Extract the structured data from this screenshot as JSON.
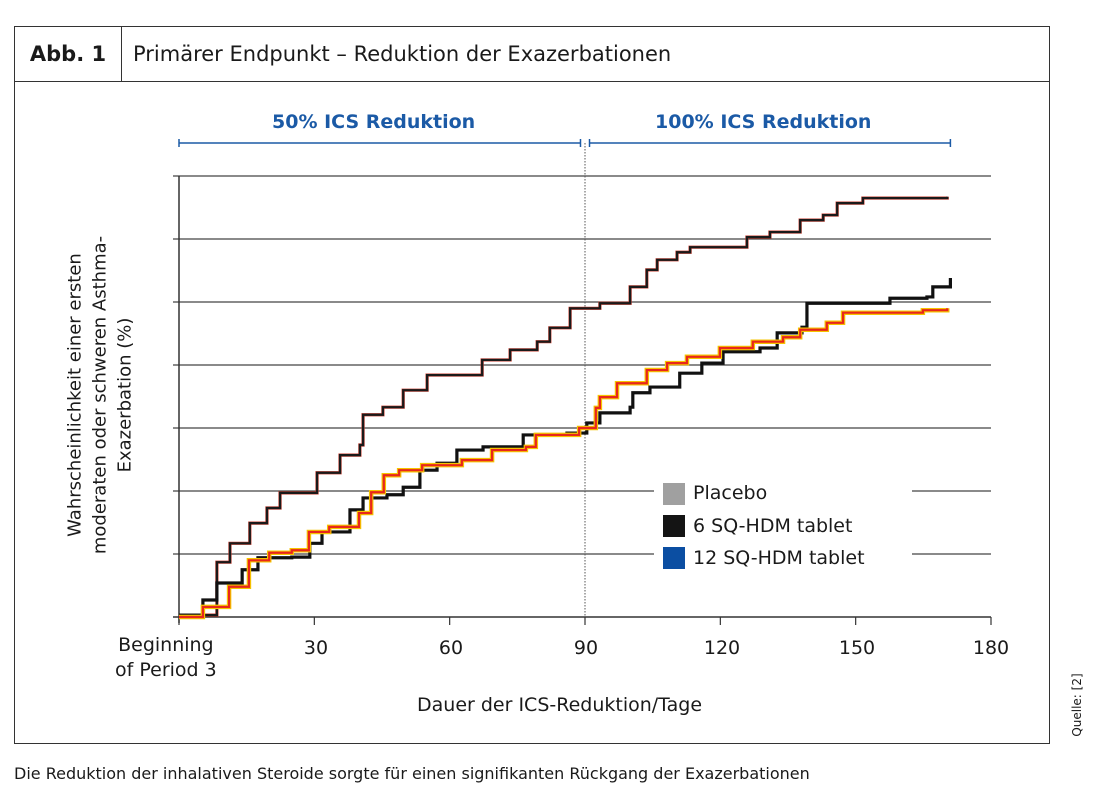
{
  "figure": {
    "label": "Abb. 1",
    "title": "Primärer Endpunkt – Reduktion der Exazerbationen",
    "caption": "Die Reduktion der inhalativen Steroide sorgte für einen signifikanten Rückgang der Exazerbationen",
    "source": "Quelle: [2]"
  },
  "chart_data": {
    "type": "line",
    "step": true,
    "title": "Primärer Endpunkt – Reduktion der Exazerbationen",
    "xlabel": "Dauer der ICS-Reduktion/Tage",
    "ylabel_lines": [
      "Wahrscheinlichkeit einer ersten",
      "moderaten oder schweren Asthma-",
      "Exazerbation (%)"
    ],
    "xlim": [
      0,
      180
    ],
    "ylim": [
      0,
      7
    ],
    "y_unit_note": "gridline units (y tick labels not shown)",
    "x_ticks": [
      {
        "value": 0,
        "label_lines": [
          "Beginning",
          "of Period 3"
        ]
      },
      {
        "value": 30,
        "label": "30"
      },
      {
        "value": 60,
        "label": "60"
      },
      {
        "value": 90,
        "label": "90"
      },
      {
        "value": 120,
        "label": "120"
      },
      {
        "value": 150,
        "label": "150"
      },
      {
        "value": 180,
        "label": "180"
      }
    ],
    "y_gridlines": [
      0,
      1,
      2,
      3,
      4,
      5,
      6,
      7
    ],
    "phases": [
      {
        "label": "50% ICS Reduktion",
        "from": 0,
        "to": 89
      },
      {
        "label": "100% ICS Reduktion",
        "from": 91,
        "to": 171
      }
    ],
    "divider_x": 90,
    "legend_position": "lower-right",
    "series": [
      {
        "name": "Placebo",
        "legend_color": "#a0a0a0",
        "line_color": "#1a1a1a",
        "edge_color": "#c0392b",
        "x": [
          0,
          8.4,
          11.3,
          15.7,
          19.5,
          22.4,
          27.5,
          30.6,
          35.7,
          40.1,
          40.8,
          45.2,
          49.7,
          55,
          63.8,
          67.2,
          73.4,
          79.4,
          82.2,
          86.7,
          93.3,
          100,
          103.7,
          106,
          110.4,
          113.3,
          125,
          125.9,
          131,
          137.7,
          142.8,
          145.9,
          151.6,
          170.3
        ],
        "y": [
          0.03,
          0.87,
          1.17,
          1.49,
          1.73,
          1.97,
          1.97,
          2.29,
          2.57,
          2.73,
          3.21,
          3.33,
          3.6,
          3.84,
          3.84,
          4.08,
          4.24,
          4.37,
          4.59,
          4.9,
          4.98,
          5.24,
          5.51,
          5.67,
          5.79,
          5.87,
          5.87,
          6.03,
          6.11,
          6.3,
          6.38,
          6.57,
          6.65,
          6.67
        ]
      },
      {
        "name": "6 SQ-HDM tablet",
        "legend_color": "#141414",
        "line_color": "#111111",
        "edge_color": "#111111",
        "x": [
          0,
          5.3,
          8.4,
          14,
          17.5,
          25,
          29,
          31.7,
          37.9,
          40.8,
          46.1,
          49.7,
          53.4,
          57.2,
          61.6,
          67.4,
          74,
          76.3,
          86,
          90.4,
          93.3,
          100,
          100.6,
          104.4,
          111,
          115.9,
          120.6,
          128.8,
          132.6,
          138.1,
          139.2,
          157,
          157.6,
          165.8,
          167.1,
          171
        ],
        "y": [
          0.03,
          0.27,
          0.54,
          0.75,
          0.94,
          0.95,
          1.17,
          1.35,
          1.7,
          1.89,
          1.94,
          2.06,
          2.33,
          2.44,
          2.65,
          2.7,
          2.7,
          2.89,
          2.92,
          3.08,
          3.24,
          3.33,
          3.56,
          3.65,
          3.87,
          4.03,
          4.21,
          4.27,
          4.51,
          4.6,
          4.98,
          4.98,
          5.06,
          5.08,
          5.24,
          5.38
        ]
      },
      {
        "name": "12 SQ-HDM tablet",
        "legend_color": "#0b4ea2",
        "line_color": "#e8261c",
        "edge_color": "#f5c400",
        "x": [
          0,
          5.3,
          11.1,
          15.5,
          20,
          25,
          28.8,
          33.3,
          39.9,
          42.6,
          45.4,
          48.8,
          53.9,
          62.7,
          69.4,
          76.9,
          79.1,
          88.7,
          92.4,
          93.3,
          97.1,
          103.7,
          108.2,
          112.6,
          119.9,
          127.2,
          133.9,
          137.7,
          143.6,
          147.2,
          164.9,
          170.3
        ],
        "y": [
          0,
          0.16,
          0.48,
          0.9,
          1.02,
          1.06,
          1.35,
          1.43,
          1.65,
          1.98,
          2.25,
          2.33,
          2.41,
          2.49,
          2.65,
          2.7,
          2.89,
          3,
          3.32,
          3.49,
          3.71,
          3.92,
          4.03,
          4.13,
          4.27,
          4.37,
          4.44,
          4.56,
          4.67,
          4.83,
          4.87,
          4.9
        ]
      }
    ]
  }
}
